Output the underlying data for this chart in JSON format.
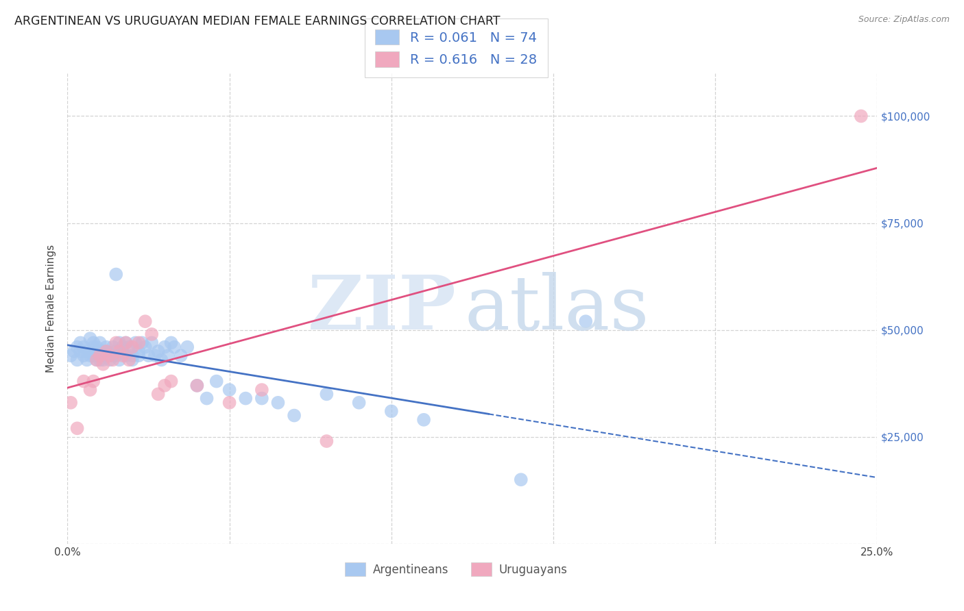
{
  "title": "ARGENTINEAN VS URUGUAYAN MEDIAN FEMALE EARNINGS CORRELATION CHART",
  "source": "Source: ZipAtlas.com",
  "ylabel": "Median Female Earnings",
  "xlim": [
    0.0,
    0.25
  ],
  "ylim": [
    0,
    110000
  ],
  "yticks": [
    0,
    25000,
    50000,
    75000,
    100000
  ],
  "ytick_labels": [
    "",
    "$25,000",
    "$50,000",
    "$75,000",
    "$100,000"
  ],
  "xticks": [
    0.0,
    0.05,
    0.1,
    0.15,
    0.2,
    0.25
  ],
  "xtick_labels": [
    "0.0%",
    "",
    "",
    "",
    "",
    "25.0%"
  ],
  "background_color": "#ffffff",
  "grid_color": "#c8c8c8",
  "legend_R_arg": "0.061",
  "legend_N_arg": "74",
  "legend_R_uru": "0.616",
  "legend_N_uru": "28",
  "arg_color": "#a8c8f0",
  "uru_color": "#f0a8be",
  "arg_line_color": "#4472c4",
  "uru_line_color": "#e05080",
  "arg_scatter_x": [
    0.001,
    0.002,
    0.003,
    0.003,
    0.004,
    0.004,
    0.005,
    0.005,
    0.006,
    0.006,
    0.007,
    0.007,
    0.008,
    0.008,
    0.008,
    0.009,
    0.009,
    0.009,
    0.01,
    0.01,
    0.01,
    0.01,
    0.011,
    0.011,
    0.011,
    0.012,
    0.012,
    0.012,
    0.013,
    0.013,
    0.014,
    0.014,
    0.015,
    0.015,
    0.015,
    0.016,
    0.016,
    0.017,
    0.017,
    0.018,
    0.018,
    0.019,
    0.02,
    0.02,
    0.021,
    0.022,
    0.022,
    0.023,
    0.024,
    0.025,
    0.026,
    0.027,
    0.028,
    0.029,
    0.03,
    0.031,
    0.032,
    0.033,
    0.035,
    0.037,
    0.04,
    0.043,
    0.046,
    0.05,
    0.055,
    0.06,
    0.065,
    0.07,
    0.08,
    0.09,
    0.1,
    0.11,
    0.14,
    0.16
  ],
  "arg_scatter_y": [
    44000,
    45000,
    46000,
    43000,
    47000,
    45000,
    44000,
    46000,
    45000,
    43000,
    48000,
    44000,
    47000,
    46000,
    44000,
    45000,
    43000,
    46000,
    44000,
    45000,
    43000,
    47000,
    45000,
    44000,
    43000,
    46000,
    44000,
    45000,
    43000,
    44000,
    46000,
    44000,
    63000,
    45000,
    44000,
    47000,
    43000,
    46000,
    45000,
    47000,
    44000,
    46000,
    44000,
    43000,
    47000,
    45000,
    44000,
    47000,
    46000,
    44000,
    47000,
    44000,
    45000,
    43000,
    46000,
    44000,
    47000,
    46000,
    44000,
    46000,
    37000,
    34000,
    38000,
    36000,
    34000,
    34000,
    33000,
    30000,
    35000,
    33000,
    31000,
    29000,
    15000,
    52000
  ],
  "uru_scatter_x": [
    0.001,
    0.003,
    0.005,
    0.007,
    0.008,
    0.009,
    0.01,
    0.011,
    0.012,
    0.013,
    0.014,
    0.015,
    0.016,
    0.017,
    0.018,
    0.019,
    0.02,
    0.022,
    0.024,
    0.026,
    0.028,
    0.03,
    0.032,
    0.04,
    0.05,
    0.06,
    0.08,
    0.245
  ],
  "uru_scatter_y": [
    33000,
    27000,
    38000,
    36000,
    38000,
    43000,
    44000,
    42000,
    45000,
    44000,
    43000,
    47000,
    45000,
    44000,
    47000,
    43000,
    46000,
    47000,
    52000,
    49000,
    35000,
    37000,
    38000,
    37000,
    33000,
    36000,
    24000,
    100000
  ],
  "arg_line_x_solid_end": 0.13,
  "arg_line_x_start": 0.0,
  "arg_line_x_end": 0.25
}
